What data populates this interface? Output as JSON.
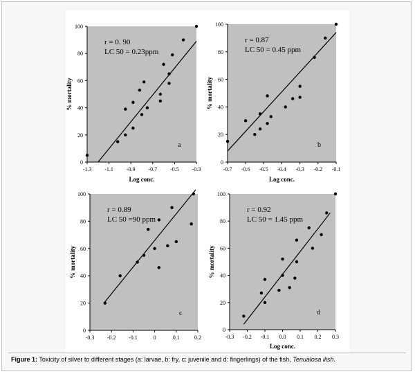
{
  "caption": {
    "label": "Figure 1:",
    "text": " Toxicity of silver to different stages (a: larvae, b: fry, c: juvenile and d: fingerlings) of the fish, ",
    "species": "Tenualosa ilish",
    "end": "."
  },
  "chart_data": [
    {
      "type": "scatter",
      "panel_letter": "a",
      "r_text": "r = 0. 90",
      "lc_text": "LC 50 = 0.23ppm",
      "xlabel": "Log conc.",
      "ylabel": "% mortality",
      "xlim": [
        -1.3,
        -0.3
      ],
      "ylim": [
        0,
        100
      ],
      "xticks": [
        -1.3,
        -1.1,
        -0.9,
        -0.7,
        -0.5,
        -0.3
      ],
      "xtick_labels": [
        "-1.3",
        "-1.1",
        "-0.9",
        "-0.7",
        "-0.5",
        "-0.3"
      ],
      "yticks": [
        0,
        20,
        40,
        60,
        80,
        100
      ],
      "ytick_labels": [
        "0",
        "20",
        "40",
        "60",
        "80",
        "100"
      ],
      "points": [
        [
          -1.3,
          5
        ],
        [
          -1.02,
          15
        ],
        [
          -0.95,
          20
        ],
        [
          -0.95,
          39
        ],
        [
          -0.88,
          25
        ],
        [
          -0.88,
          44
        ],
        [
          -0.82,
          53
        ],
        [
          -0.8,
          35
        ],
        [
          -0.78,
          59
        ],
        [
          -0.75,
          40
        ],
        [
          -0.63,
          50
        ],
        [
          -0.63,
          45
        ],
        [
          -0.6,
          72
        ],
        [
          -0.55,
          58
        ],
        [
          -0.55,
          65
        ],
        [
          -0.52,
          79
        ],
        [
          -0.42,
          90
        ],
        [
          -0.3,
          100
        ]
      ],
      "trendline": [
        [
          -1.2,
          0
        ],
        [
          -0.3,
          89
        ]
      ]
    },
    {
      "type": "scatter",
      "panel_letter": "b",
      "r_text": "r = 0.87",
      "lc_text": "LC 50 = 0.45 ppm",
      "xlabel": "Log conc.",
      "ylabel": "% mortality",
      "xlim": [
        -0.7,
        -0.1
      ],
      "ylim": [
        0,
        100
      ],
      "xticks": [
        -0.7,
        -0.6,
        -0.5,
        -0.4,
        -0.3,
        -0.2,
        -0.1
      ],
      "xtick_labels": [
        "-0.7",
        "-0.6",
        "-0.5",
        "-0.4",
        "-0.3",
        "-0.2",
        "-0.1"
      ],
      "yticks": [
        0,
        20,
        40,
        60,
        80,
        100
      ],
      "ytick_labels": [
        "0",
        "20",
        "40",
        "60",
        "80",
        "100"
      ],
      "points": [
        [
          -0.7,
          15
        ],
        [
          -0.6,
          30
        ],
        [
          -0.55,
          20
        ],
        [
          -0.52,
          35
        ],
        [
          -0.52,
          24
        ],
        [
          -0.48,
          48
        ],
        [
          -0.48,
          28
        ],
        [
          -0.46,
          33
        ],
        [
          -0.38,
          40
        ],
        [
          -0.34,
          46
        ],
        [
          -0.3,
          47
        ],
        [
          -0.3,
          55
        ],
        [
          -0.22,
          76
        ],
        [
          -0.16,
          90
        ],
        [
          -0.1,
          100
        ]
      ],
      "trendline": [
        [
          -0.7,
          8
        ],
        [
          -0.1,
          94
        ]
      ]
    },
    {
      "type": "scatter",
      "panel_letter": "c",
      "r_text": "r = 0.89",
      "lc_text": "LC 50 =90 ppm",
      "xlabel": "",
      "ylabel": "% mortality",
      "xlim": [
        -0.3,
        0.2
      ],
      "ylim": [
        0,
        100
      ],
      "xticks": [
        -0.3,
        -0.2,
        -0.1,
        0,
        0.1,
        0.2
      ],
      "xtick_labels": [
        "-0.3",
        "-0.2",
        "-0.1",
        "0",
        "0.1",
        "0.2"
      ],
      "yticks": [
        0,
        20,
        40,
        60,
        80,
        100
      ],
      "ytick_labels": [
        "0",
        "20",
        "40",
        "60",
        "80",
        "100"
      ],
      "points": [
        [
          -0.23,
          20
        ],
        [
          -0.16,
          40
        ],
        [
          -0.08,
          50
        ],
        [
          -0.05,
          55
        ],
        [
          -0.03,
          74
        ],
        [
          0,
          60
        ],
        [
          0.02,
          81
        ],
        [
          0.02,
          46
        ],
        [
          0.06,
          62
        ],
        [
          0.08,
          90
        ],
        [
          0.1,
          65
        ],
        [
          0.17,
          78
        ],
        [
          0.18,
          100
        ]
      ],
      "trendline": [
        [
          -0.23,
          21
        ],
        [
          0.19,
          103
        ]
      ]
    },
    {
      "type": "scatter",
      "panel_letter": "d",
      "r_text": "r = 0.92",
      "lc_text": "LC 50 = 1.45 ppm",
      "xlabel": "Log conc.",
      "ylabel": "% mortality",
      "xlim": [
        -0.3,
        0.3
      ],
      "ylim": [
        0,
        100
      ],
      "xticks": [
        -0.3,
        -0.2,
        -0.1,
        0,
        0.1,
        0.2,
        0.3
      ],
      "xtick_labels": [
        "-0.3",
        "-0.2",
        "-0.1",
        "0.0",
        "0.1",
        "0.2",
        "0.3"
      ],
      "yticks": [
        0,
        20,
        40,
        60,
        80,
        100
      ],
      "ytick_labels": [
        "0",
        "20",
        "40",
        "60",
        "80",
        "100"
      ],
      "points": [
        [
          -0.22,
          10
        ],
        [
          -0.12,
          27
        ],
        [
          -0.1,
          37
        ],
        [
          -0.1,
          20
        ],
        [
          -0.02,
          29
        ],
        [
          0,
          40
        ],
        [
          0,
          52
        ],
        [
          0.04,
          31
        ],
        [
          0.07,
          38
        ],
        [
          0.08,
          50
        ],
        [
          0.08,
          66
        ],
        [
          0.15,
          75
        ],
        [
          0.17,
          60
        ],
        [
          0.22,
          70
        ],
        [
          0.25,
          86
        ],
        [
          0.3,
          100
        ]
      ],
      "trendline": [
        [
          -0.22,
          4
        ],
        [
          0.27,
          86
        ]
      ]
    }
  ]
}
